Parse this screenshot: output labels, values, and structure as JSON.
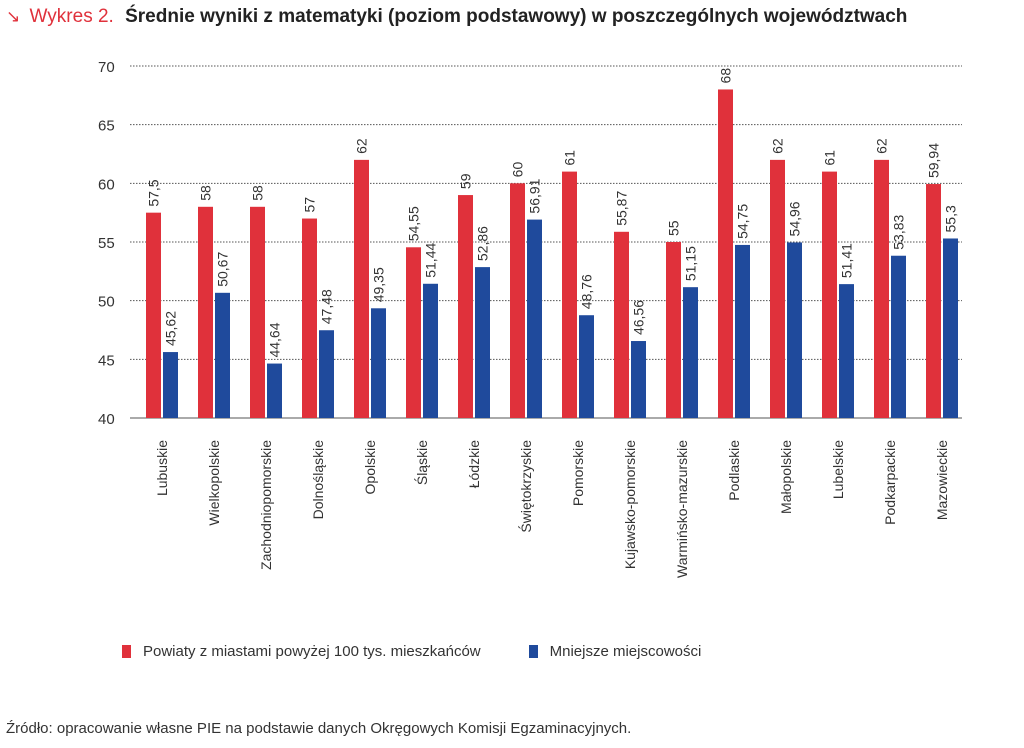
{
  "header": {
    "arrow": "↘",
    "prefix": "Wykres 2.",
    "title": "Średnie wyniki z matematyki (poziom podstawowy) w poszczególnych województwach"
  },
  "source": "Źródło: opracowanie własne PIE na podstawie danych Okręgowych Komisji Egzaminacyjnych.",
  "colors": {
    "series1": "#e0313b",
    "series2": "#1f4a9c",
    "grid": "#555555"
  },
  "chart_data": {
    "type": "bar",
    "ylim": [
      40,
      70
    ],
    "yticks": [
      40,
      45,
      50,
      55,
      60,
      65,
      70
    ],
    "grid": true,
    "legend_position": "bottom",
    "categories": [
      "Lubuskie",
      "Wielkopolskie",
      "Zachodniopomorskie",
      "Dolnośląskie",
      "Opolskie",
      "Śląskie",
      "Łódzkie",
      "Świętokrzyskie",
      "Pomorskie",
      "Kujawsko-pomorskie",
      "Warmińsko-mazurskie",
      "Podlaskie",
      "Małopolskie",
      "Lubelskie",
      "Podkarpackie",
      "Mazowieckie"
    ],
    "series": [
      {
        "name": "Powiaty z miastami powyżej 100 tys. mieszkańców",
        "values": [
          57.5,
          58,
          58,
          57,
          62,
          54.55,
          59,
          60,
          61,
          55.87,
          55,
          68,
          62,
          61,
          62,
          59.94
        ],
        "labels": [
          "57,5",
          "58",
          "58",
          "57",
          "62",
          "54,55",
          "59",
          "60",
          "61",
          "55,87",
          "55",
          "68",
          "62",
          "61",
          "62",
          "59,94"
        ]
      },
      {
        "name": "Mniejsze miejscowości",
        "values": [
          45.62,
          50.67,
          44.64,
          47.48,
          49.35,
          51.44,
          52.86,
          56.91,
          48.76,
          46.56,
          51.15,
          54.75,
          54.96,
          51.41,
          53.83,
          55.3
        ],
        "labels": [
          "45,62",
          "50,67",
          "44,64",
          "47,48",
          "49,35",
          "51,44",
          "52,86",
          "56,91",
          "48,76",
          "46,56",
          "51,15",
          "54,75",
          "54,96",
          "51,41",
          "53,83",
          "55,3"
        ]
      }
    ]
  }
}
